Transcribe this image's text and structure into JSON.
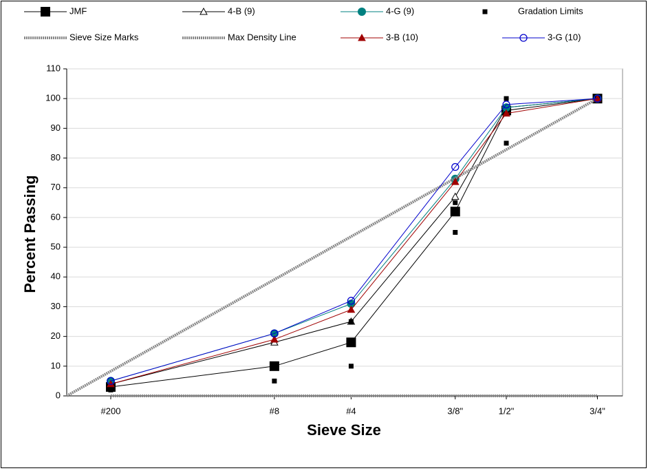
{
  "chart_data": {
    "type": "line",
    "x_label": "Sieve Size",
    "y_label": "Percent Passing",
    "x": [
      0.312,
      1.472,
      2.016,
      2.754,
      3.116,
      3.762
    ],
    "xlim": [
      0,
      3.94
    ],
    "xticks": [
      {
        "value": 0.312,
        "label": "#200"
      },
      {
        "value": 1.472,
        "label": "#8"
      },
      {
        "value": 2.016,
        "label": "#4"
      },
      {
        "value": 2.754,
        "label": "3/8\""
      },
      {
        "value": 3.116,
        "label": "1/2\""
      },
      {
        "value": 3.762,
        "label": "3/4\""
      }
    ],
    "ylim": [
      0,
      110
    ],
    "yticks": [
      0,
      10,
      20,
      30,
      40,
      50,
      60,
      70,
      80,
      90,
      100,
      110
    ],
    "grid": true,
    "series": [
      {
        "name": "JMF",
        "color": "#000000",
        "marker": "square",
        "values": [
          3,
          10,
          18,
          62,
          96,
          100
        ]
      },
      {
        "name": "4-B (9)",
        "color": "#000000",
        "marker": "open-triangle",
        "values": [
          4,
          18,
          25,
          67,
          97,
          100
        ]
      },
      {
        "name": "4-G (9)",
        "color": "#008080",
        "marker": "circle",
        "values": [
          5,
          21,
          31,
          73,
          97,
          100
        ]
      },
      {
        "name": "Gradation Limits",
        "color": "#000000",
        "marker": "small-square",
        "line": false,
        "x": [
          0.312,
          1.472,
          2.016,
          2.016,
          2.754,
          2.754,
          3.116,
          3.116,
          3.762
        ],
        "values": [
          2,
          5,
          10,
          25,
          55,
          65,
          85,
          100,
          100
        ]
      },
      {
        "name": "Sieve Size Marks",
        "color": "#888888",
        "marker": "hatch",
        "x": [
          0.312,
          1.472,
          2.016,
          2.754,
          3.116,
          3.762
        ],
        "values": [
          0,
          0,
          0,
          0,
          0,
          0
        ]
      },
      {
        "name": "Max Density Line",
        "color": "#888888",
        "marker": "hatch",
        "x": [
          0,
          3.762
        ],
        "values": [
          0,
          100
        ]
      },
      {
        "name": "3-B (10)",
        "color": "#a00000",
        "marker": "triangle",
        "values": [
          4,
          19,
          29,
          72,
          95,
          100
        ]
      },
      {
        "name": "3-G (10)",
        "color": "#0000cc",
        "marker": "open-circle",
        "values": [
          5,
          21,
          32,
          77,
          98,
          100
        ]
      }
    ]
  }
}
